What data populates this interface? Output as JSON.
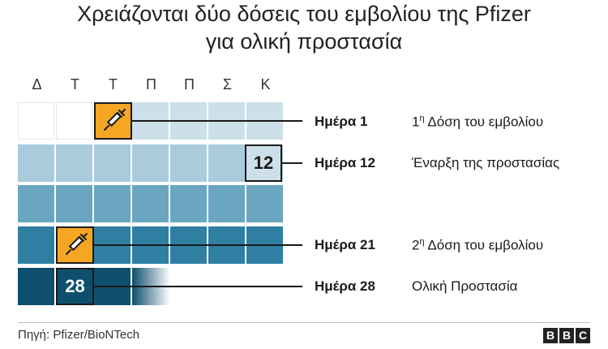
{
  "title_line1": "Χρειάζονται δύο δόσεις του εμβολίου της Pfizer",
  "title_line2": "για ολική προστασία",
  "weekdays": [
    "Δ",
    "Τ",
    "Τ",
    "Π",
    "Π",
    "Σ",
    "Κ"
  ],
  "rows": [
    {
      "day_label": "Ημέρα 1",
      "description": "1η Δόση του εμβολίου",
      "sup": "η",
      "desc_rest": " Δόση του εμβολίου",
      "desc_prefix": "1"
    },
    {
      "day_label": "Ημέρα 12",
      "description": "Έναρξη της προστασίας",
      "box_number": "12"
    },
    {
      "day_label": "Ημέρα 21",
      "description": "2η Δόση του εμβολίου",
      "sup": "η",
      "desc_rest": " Δόση του εμβολίου",
      "desc_prefix": "2"
    },
    {
      "day_label": "Ημέρα 28",
      "description": "Ολική Προστασία",
      "box_number": "28"
    }
  ],
  "icons": {
    "dose1": "syringe-icon",
    "dose2": "syringe-icon"
  },
  "colors": {
    "week1": "#cde0ea",
    "week2": "#a9cbdc",
    "week3": "#6aa6c2",
    "week4": "#2f7fa3",
    "week5": "#0f4f6e",
    "accent_orange": "#f5a623"
  },
  "footer": {
    "source_label": "Πηγή:",
    "source_value": "Pfizer/BioNTech",
    "logo_letters": [
      "B",
      "B",
      "C"
    ]
  }
}
